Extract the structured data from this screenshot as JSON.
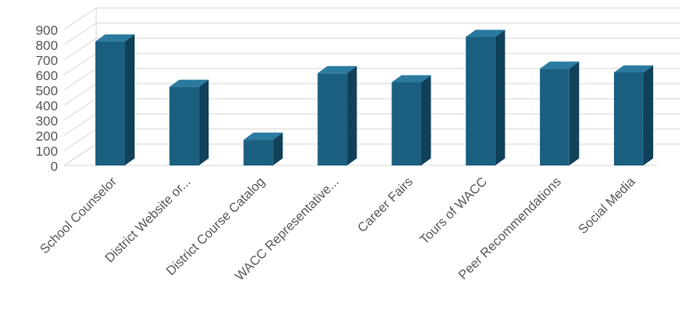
{
  "chart_data": {
    "type": "bar",
    "title": "",
    "xlabel": "",
    "ylabel": "",
    "categories": [
      "School Counselor",
      "District Website or...",
      "District Course Catalog",
      "WACC Representative...",
      "Career Fairs",
      "Tours of WACC",
      "Peer Recommendations",
      "Social Media"
    ],
    "values": [
      820,
      520,
      170,
      610,
      550,
      850,
      640,
      615
    ],
    "ylim": [
      0,
      900
    ],
    "yticks": [
      "0",
      "100",
      "200",
      "300",
      "400",
      "500",
      "600",
      "700",
      "800",
      "900"
    ],
    "three_d": true,
    "grid": true,
    "legend": "none",
    "colors": {
      "bar_front": "#1b5f80",
      "bar_side": "#10415a",
      "bar_top": "#2a7aa0",
      "grid": "#d9d9d9",
      "text": "#595959"
    }
  }
}
